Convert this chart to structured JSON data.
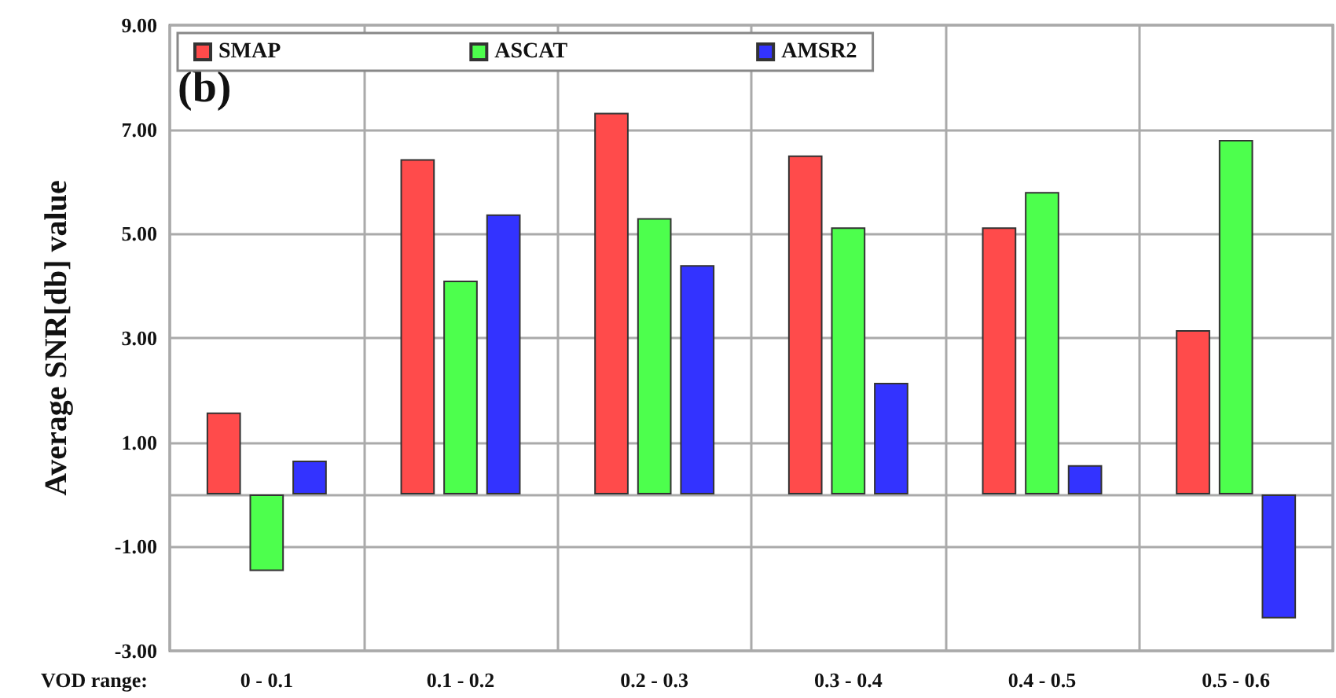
{
  "chart_data": {
    "type": "bar",
    "ylabel": "Average SNR[db] value",
    "xlabel": "VOD range:",
    "annotations": [
      "(b)"
    ],
    "categories": [
      "0 - 0.1",
      "0.1 - 0.2",
      "0.2 - 0.3",
      "0.3 - 0.4",
      "0.4 - 0.5",
      "0.5 - 0.6"
    ],
    "series": [
      {
        "name": "SMAP",
        "color": "#ff4b4b",
        "values": [
          1.57,
          6.43,
          7.32,
          6.5,
          5.12,
          3.15
        ]
      },
      {
        "name": "ASCAT",
        "color": "#4dff4d",
        "values": [
          -1.47,
          4.1,
          5.3,
          5.12,
          5.8,
          6.8
        ]
      },
      {
        "name": "AMSR2",
        "color": "#3333ff",
        "values": [
          0.65,
          5.37,
          4.4,
          2.14,
          0.56,
          -2.38
        ]
      }
    ],
    "ylim": [
      -3,
      9
    ],
    "yticks": [
      {
        "value": -3,
        "label": "-3.00"
      },
      {
        "value": -1,
        "label": "-1.00"
      },
      {
        "value": 0,
        "label": null
      },
      {
        "value": 1,
        "label": "1.00"
      },
      {
        "value": 3,
        "label": "3.00"
      },
      {
        "value": 5,
        "label": "5.00"
      },
      {
        "value": 7,
        "label": "7.00"
      },
      {
        "value": 9,
        "label": "9.00"
      }
    ],
    "grid": true,
    "legend": "top"
  }
}
